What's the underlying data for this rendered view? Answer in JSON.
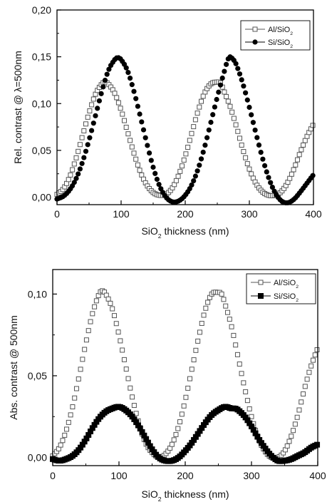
{
  "chart_data": [
    {
      "type": "scatter",
      "title": "",
      "xlabel": "SiO2 thickness (nm)",
      "ylabel": "Rel. contrast @ λ=500nm",
      "xlim": [
        0,
        400
      ],
      "ylim": [
        -0.008,
        0.2
      ],
      "xticks": [
        "0",
        "100",
        "200",
        "300",
        "400"
      ],
      "yticks": [
        "0,00",
        "0,05",
        "0,10",
        "0,15",
        "0,20"
      ],
      "grid": false,
      "legend_position": "top-right",
      "series": [
        {
          "name": "Al/SiO2",
          "marker": "open-square",
          "color": "#555555",
          "x": [
            0,
            10,
            20,
            30,
            40,
            50,
            60,
            70,
            75,
            80,
            90,
            100,
            110,
            120,
            130,
            140,
            150,
            160,
            170,
            180,
            190,
            200,
            210,
            220,
            230,
            240,
            250,
            255,
            260,
            270,
            280,
            290,
            300,
            310,
            320,
            330,
            340,
            350,
            360,
            370,
            380,
            390,
            400
          ],
          "values": [
            0.003,
            0.009,
            0.022,
            0.042,
            0.066,
            0.09,
            0.11,
            0.121,
            0.123,
            0.121,
            0.111,
            0.093,
            0.07,
            0.047,
            0.027,
            0.013,
            0.005,
            0.002,
            0.003,
            0.01,
            0.024,
            0.044,
            0.068,
            0.092,
            0.111,
            0.121,
            0.123,
            0.122,
            0.114,
            0.097,
            0.075,
            0.051,
            0.03,
            0.015,
            0.006,
            0.002,
            0.002,
            0.006,
            0.016,
            0.031,
            0.049,
            0.065,
            0.078
          ]
        },
        {
          "name": "Si/SiO2",
          "marker": "filled-circle",
          "color": "#000000",
          "x": [
            0,
            10,
            20,
            30,
            40,
            50,
            60,
            70,
            80,
            90,
            95,
            100,
            110,
            120,
            130,
            140,
            150,
            160,
            170,
            180,
            190,
            200,
            210,
            220,
            230,
            240,
            250,
            260,
            268,
            275,
            280,
            290,
            300,
            310,
            320,
            330,
            340,
            350,
            360,
            370,
            380,
            390,
            400
          ],
          "values": [
            -0.002,
            0.001,
            0.008,
            0.02,
            0.038,
            0.061,
            0.087,
            0.113,
            0.135,
            0.147,
            0.149,
            0.147,
            0.135,
            0.113,
            0.086,
            0.058,
            0.032,
            0.012,
            0.0,
            -0.005,
            -0.004,
            0.002,
            0.013,
            0.03,
            0.053,
            0.08,
            0.107,
            0.132,
            0.149,
            0.147,
            0.141,
            0.121,
            0.096,
            0.069,
            0.043,
            0.021,
            0.005,
            -0.004,
            -0.006,
            -0.002,
            0.006,
            0.015,
            0.024
          ]
        }
      ]
    },
    {
      "type": "scatter",
      "title": "",
      "xlabel": "SiO2 thickness (nm)",
      "ylabel": "Abs. contrast @ 500nm",
      "xlim": [
        0,
        400
      ],
      "ylim": [
        -0.005,
        0.115
      ],
      "xticks": [
        "0",
        "200",
        "400"
      ],
      "xticks_intermediate": [
        "100",
        "300"
      ],
      "yticks": [
        "0,00",
        "0,05",
        "0,10"
      ],
      "grid": false,
      "legend_position": "top-right",
      "series": [
        {
          "name": "Al/SiO2",
          "marker": "open-square",
          "color": "#555555",
          "x": [
            0,
            10,
            20,
            30,
            40,
            50,
            60,
            70,
            75,
            80,
            90,
            100,
            110,
            120,
            130,
            140,
            150,
            160,
            170,
            180,
            190,
            200,
            210,
            220,
            230,
            240,
            250,
            255,
            260,
            270,
            280,
            290,
            300,
            310,
            320,
            330,
            340,
            350,
            360,
            370,
            380,
            390,
            400
          ],
          "values": [
            0.001,
            0.006,
            0.016,
            0.031,
            0.05,
            0.07,
            0.088,
            0.1,
            0.102,
            0.1,
            0.091,
            0.075,
            0.056,
            0.037,
            0.021,
            0.009,
            0.003,
            0.0,
            0.002,
            0.008,
            0.019,
            0.035,
            0.054,
            0.073,
            0.09,
            0.1,
            0.101,
            0.1,
            0.094,
            0.08,
            0.061,
            0.042,
            0.025,
            0.012,
            0.004,
            0.0,
            0.0,
            0.004,
            0.013,
            0.026,
            0.042,
            0.056,
            0.067
          ]
        },
        {
          "name": "Si/SiO2",
          "marker": "filled-square",
          "color": "#000000",
          "x": [
            0,
            10,
            20,
            30,
            40,
            50,
            60,
            70,
            80,
            90,
            100,
            110,
            120,
            130,
            140,
            150,
            160,
            170,
            180,
            190,
            200,
            210,
            220,
            230,
            240,
            250,
            260,
            270,
            275,
            280,
            290,
            300,
            310,
            320,
            330,
            340,
            350,
            360,
            370,
            380,
            390,
            400
          ],
          "values": [
            -0.001,
            -0.002,
            -0.001,
            0.001,
            0.005,
            0.011,
            0.018,
            0.024,
            0.028,
            0.03,
            0.031,
            0.029,
            0.025,
            0.019,
            0.012,
            0.005,
            0.0,
            -0.002,
            -0.002,
            0.0,
            0.004,
            0.009,
            0.015,
            0.021,
            0.026,
            0.029,
            0.031,
            0.03,
            0.03,
            0.029,
            0.025,
            0.019,
            0.012,
            0.006,
            0.001,
            -0.002,
            -0.002,
            -0.001,
            0.001,
            0.003,
            0.006,
            0.008
          ]
        }
      ]
    }
  ]
}
